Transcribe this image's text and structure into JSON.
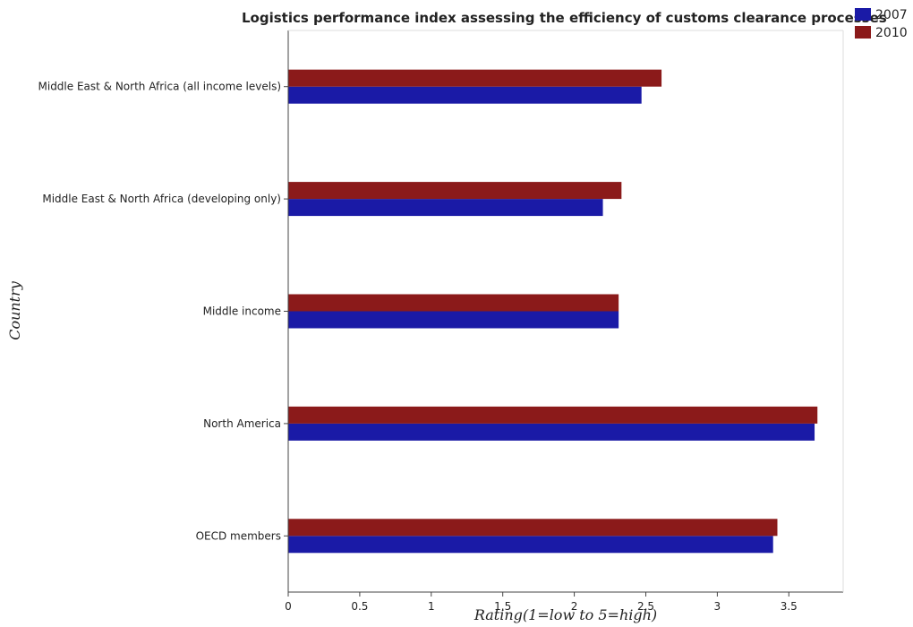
{
  "chart_data": {
    "type": "bar",
    "orientation": "horizontal",
    "title": "Logistics performance index assessing the efficiency of customs clearance processes",
    "xlabel": "Rating(1=low to 5=high)",
    "ylabel": "Country",
    "xlim": [
      0,
      3.88
    ],
    "xticks": [
      0,
      0.5,
      1,
      1.5,
      2,
      2.5,
      3,
      3.5
    ],
    "xtick_labels": [
      "0",
      "0.5",
      "1",
      "1.5",
      "2",
      "2.5",
      "3",
      "3.5"
    ],
    "categories": [
      "Middle East & North Africa (all income levels)",
      "Middle East & North Africa (developing only)",
      "Middle income",
      "North America",
      "OECD members"
    ],
    "series": [
      {
        "name": "2007",
        "color": "#1a1aa6",
        "values": [
          2.47,
          2.2,
          2.31,
          3.68,
          3.39
        ]
      },
      {
        "name": "2010",
        "color": "#8b1a1a",
        "values": [
          2.61,
          2.33,
          2.31,
          3.7,
          3.42
        ]
      }
    ],
    "legend_position": "top-right",
    "grid": false
  }
}
